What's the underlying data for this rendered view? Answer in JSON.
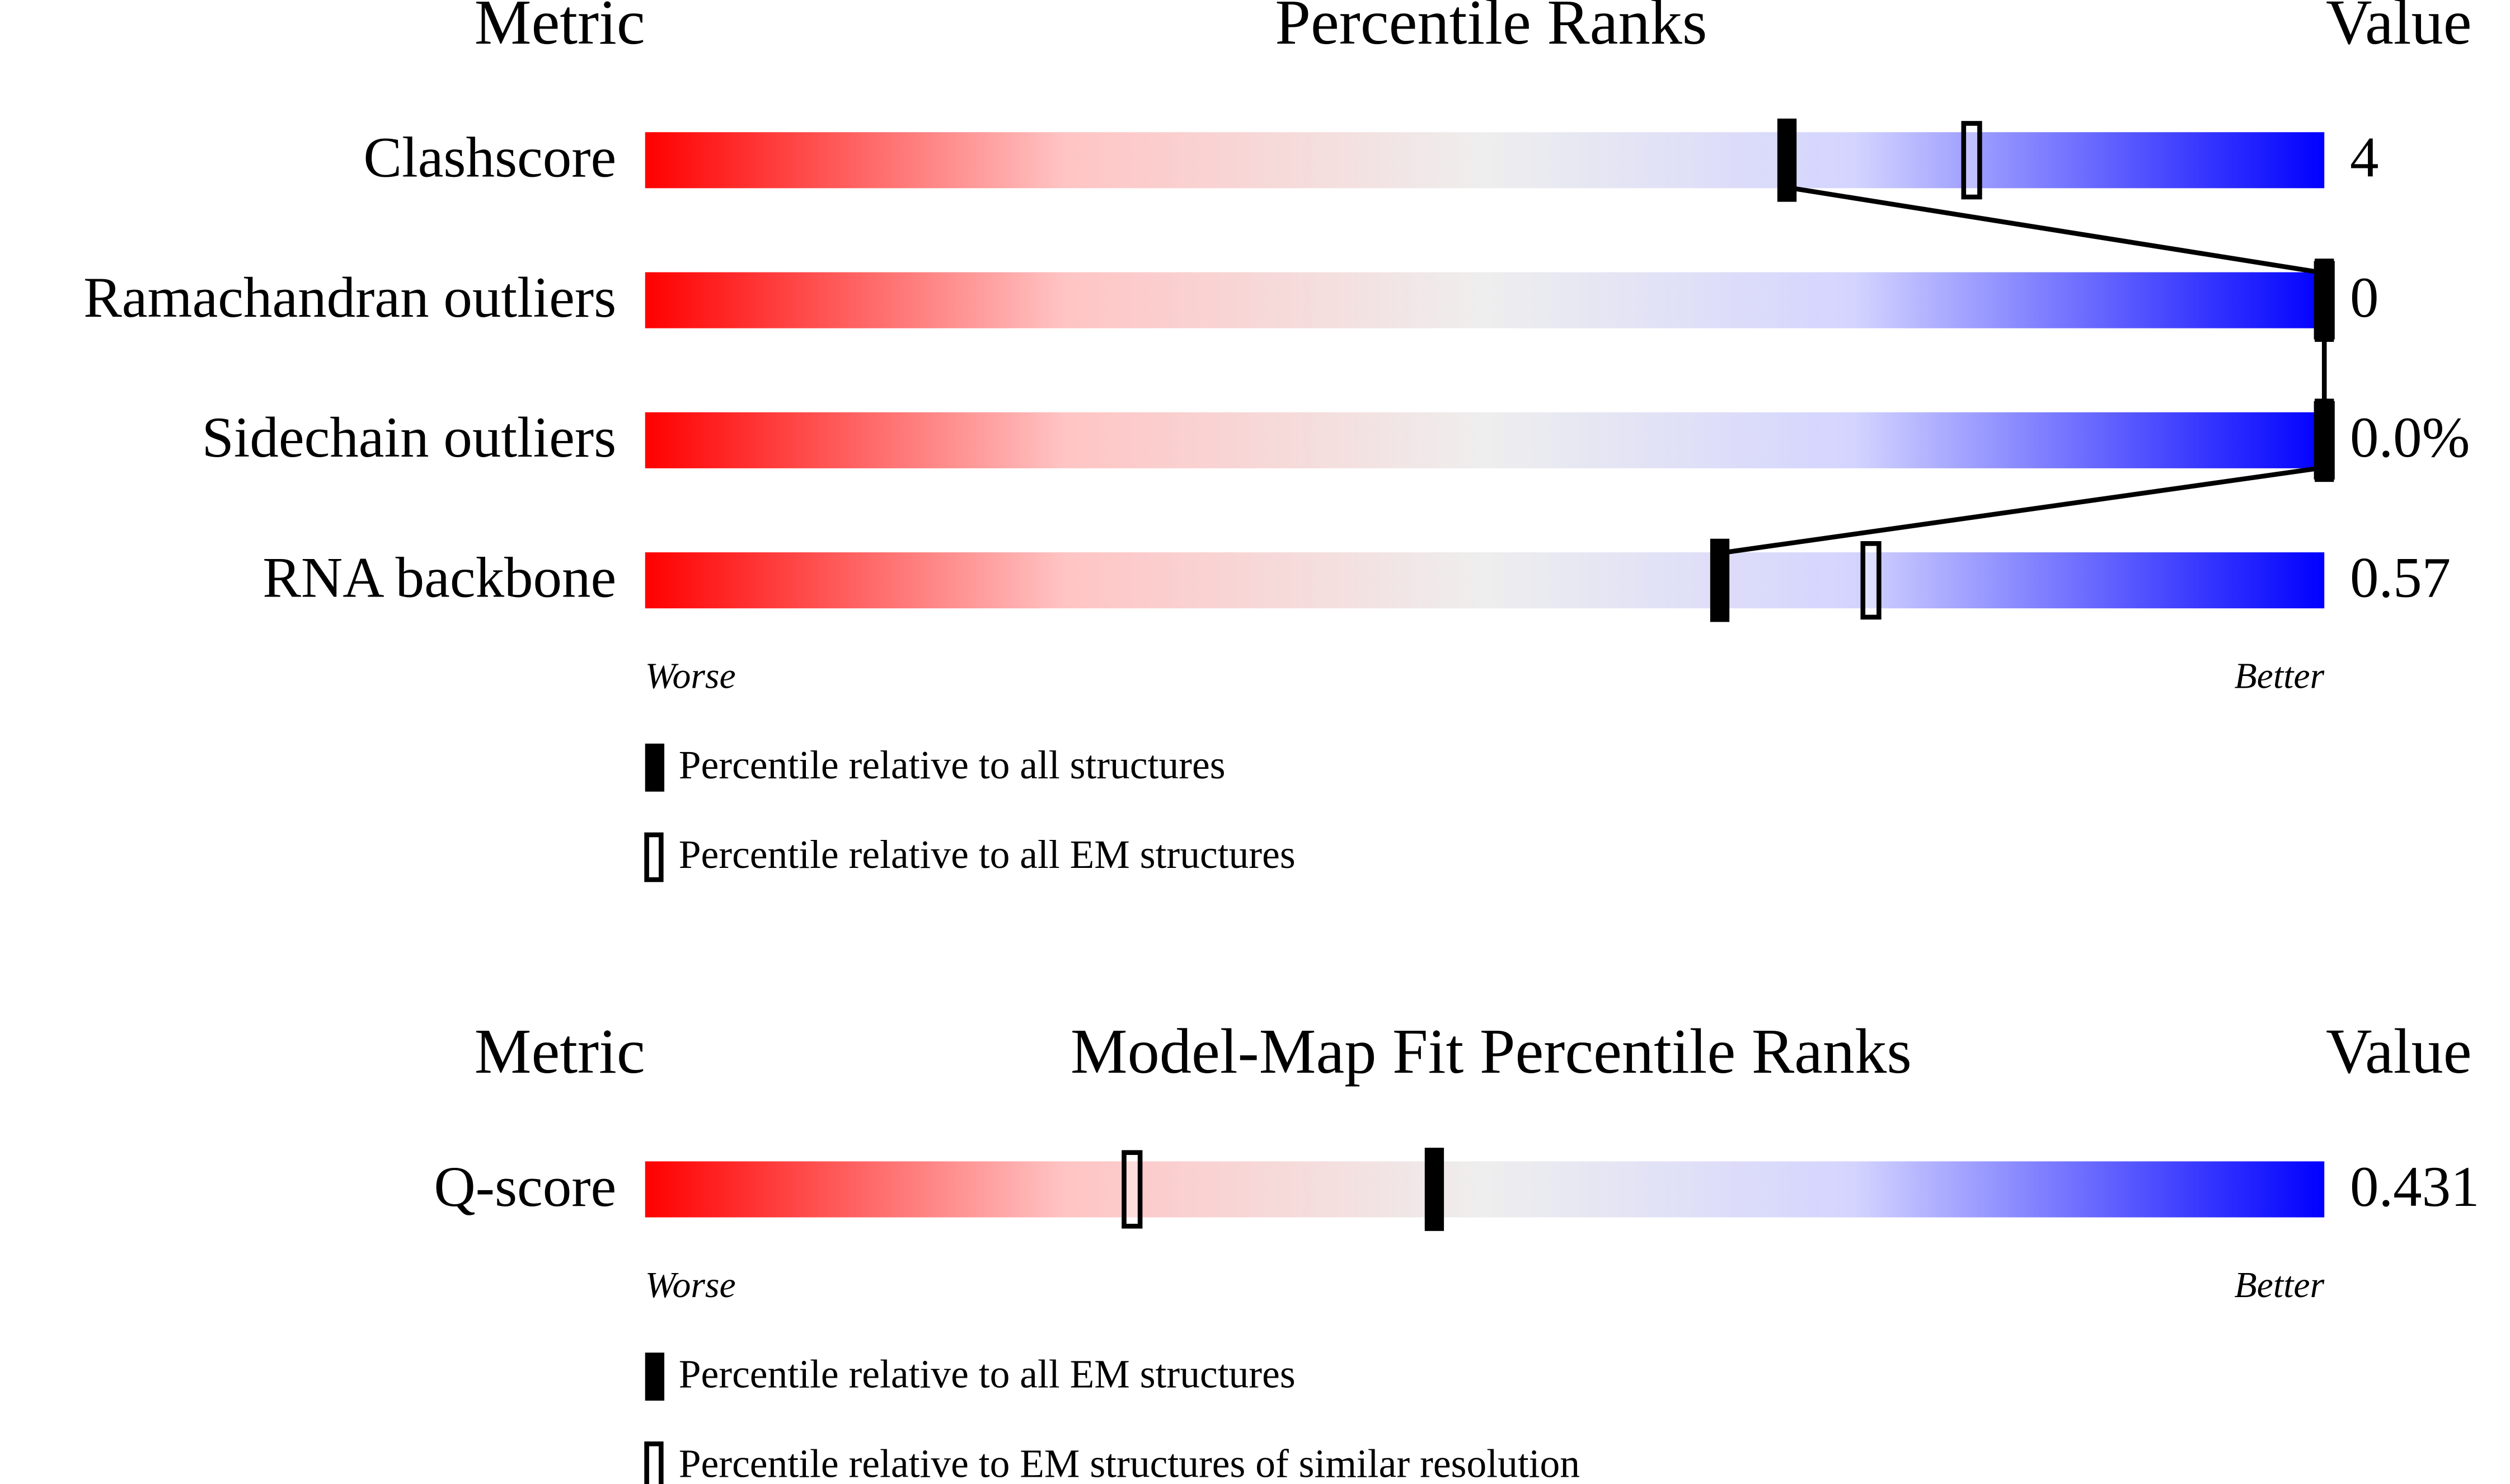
{
  "chart_data": [
    {
      "type": "percentile-slider",
      "metric_header": "Metric",
      "title": "Percentile Ranks",
      "value_header": "Value",
      "categories": [
        "Clashscore",
        "Ramachandran outliers",
        "Sidechain outliers",
        "RNA backbone"
      ],
      "metric_values": [
        "4",
        "0",
        "0.0%",
        "0.57"
      ],
      "xlim": [
        0,
        100
      ],
      "xlabels": {
        "low": "Worse",
        "high": "Better"
      },
      "connect_series": 0,
      "series": [
        {
          "name": "Percentile relative to all structures",
          "marker": "filled",
          "color": "#000000",
          "values": [
            68,
            100,
            100,
            64
          ]
        },
        {
          "name": "Percentile relative to all EM structures",
          "marker": "open",
          "color": "#000000",
          "values": [
            79,
            100,
            100,
            73
          ]
        }
      ]
    },
    {
      "type": "percentile-slider",
      "metric_header": "Metric",
      "title": "Model-Map Fit Percentile Ranks",
      "value_header": "Value",
      "categories": [
        "Q-score"
      ],
      "metric_values": [
        "0.431"
      ],
      "xlim": [
        0,
        100
      ],
      "xlabels": {
        "low": "Worse",
        "high": "Better"
      },
      "connect_series": 0,
      "series": [
        {
          "name": "Percentile relative to all EM structures",
          "marker": "filled",
          "color": "#000000",
          "values": [
            47
          ]
        },
        {
          "name": "Percentile relative to EM structures of similar resolution",
          "marker": "open",
          "color": "#000000",
          "values": [
            29
          ]
        }
      ]
    }
  ]
}
